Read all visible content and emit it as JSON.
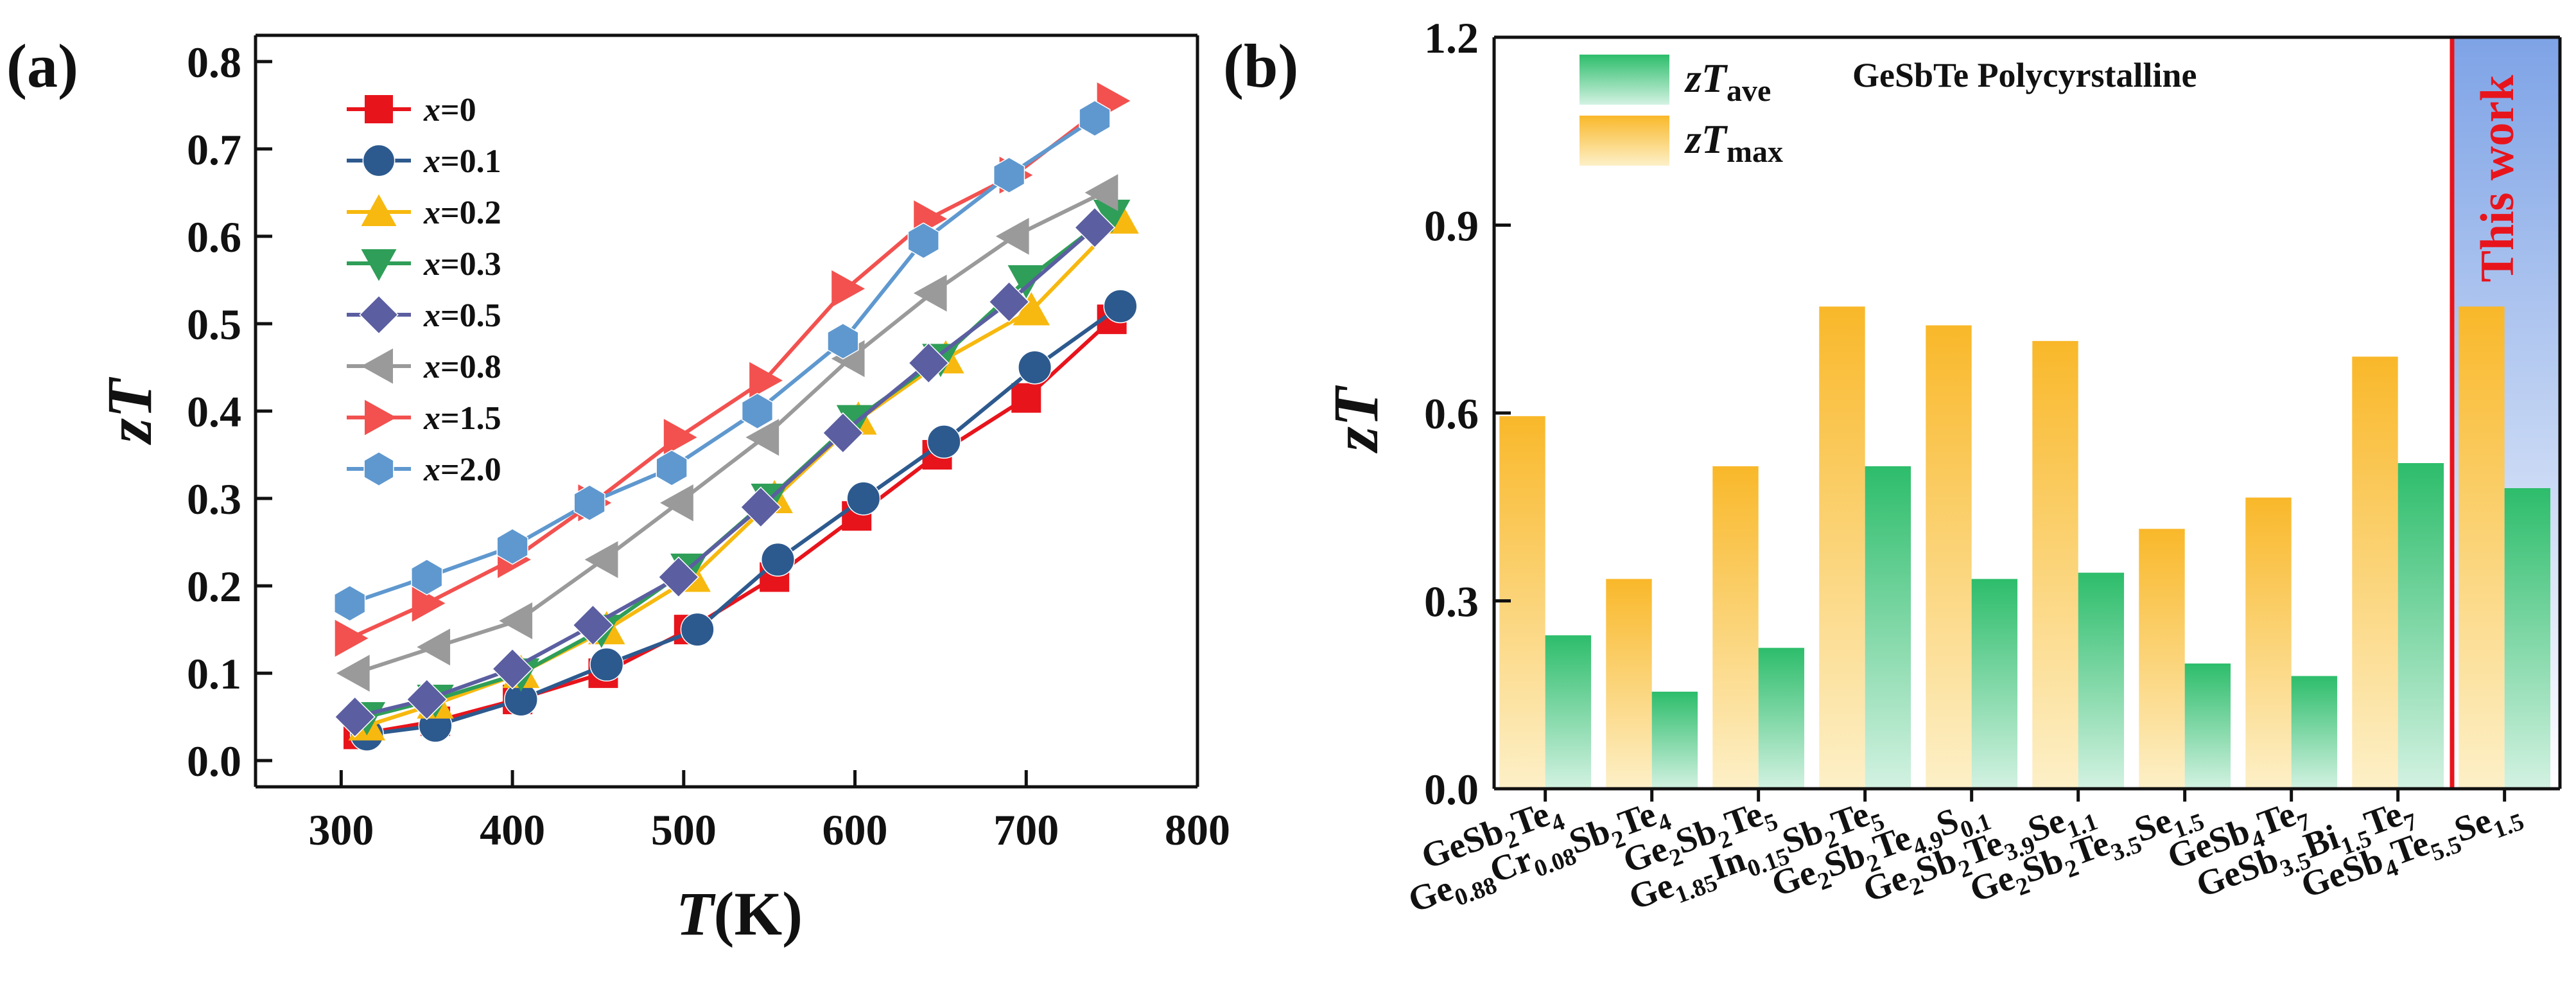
{
  "charts": [
    {
      "panel_label": "(a)",
      "chart_data": {
        "type": "line",
        "title": "",
        "xlabel": "T(K)",
        "ylabel": "zT",
        "xlim": [
          250,
          800
        ],
        "ylim": [
          -0.03,
          0.83
        ],
        "xticks": [
          300,
          400,
          500,
          600,
          700,
          800
        ],
        "yticks": [
          0.0,
          0.1,
          0.2,
          0.3,
          0.4,
          0.5,
          0.6,
          0.7,
          0.8
        ],
        "legend_position": "top-left",
        "series": [
          {
            "name": "x=0",
            "color": "#e8141c",
            "marker": "square",
            "x": [
              310,
              355,
              403,
              453,
              503,
              553,
              601,
              648,
              700,
              750
            ],
            "y": [
              0.03,
              0.045,
              0.07,
              0.1,
              0.15,
              0.21,
              0.28,
              0.35,
              0.415,
              0.505
            ]
          },
          {
            "name": "x=0.1",
            "color": "#2d5a8e",
            "marker": "circle",
            "x": [
              315,
              355,
              405,
              455,
              508,
              555,
              605,
              652,
              705,
              755
            ],
            "y": [
              0.03,
              0.04,
              0.07,
              0.11,
              0.15,
              0.23,
              0.3,
              0.365,
              0.45,
              0.52
            ]
          },
          {
            "name": "x=0.2",
            "color": "#f7b90f",
            "marker": "triangle-up",
            "x": [
              315,
              355,
              405,
              455,
              505,
              553,
              602,
              653,
              703,
              755
            ],
            "y": [
              0.04,
              0.065,
              0.1,
              0.15,
              0.21,
              0.3,
              0.39,
              0.46,
              0.515,
              0.62
            ]
          },
          {
            "name": "x=0.3",
            "color": "#2f9e58",
            "marker": "triangle-down",
            "x": [
              315,
              355,
              405,
              452,
              503,
              550,
              600,
              650,
              700,
              750
            ],
            "y": [
              0.05,
              0.07,
              0.1,
              0.15,
              0.22,
              0.3,
              0.39,
              0.46,
              0.55,
              0.625
            ]
          },
          {
            "name": "x=0.5",
            "color": "#5b5ea0",
            "marker": "diamond",
            "x": [
              308,
              350,
              400,
              447,
              497,
              545,
              593,
              643,
              690,
              740
            ],
            "y": [
              0.05,
              0.07,
              0.105,
              0.155,
              0.21,
              0.29,
              0.375,
              0.455,
              0.525,
              0.61
            ]
          },
          {
            "name": "x=0.8",
            "color": "#9a9a9a",
            "marker": "triangle-left",
            "x": [
              308,
              355,
              403,
              453,
              497,
              547,
              597,
              645,
              693,
              745
            ],
            "y": [
              0.1,
              0.13,
              0.16,
              0.23,
              0.295,
              0.37,
              0.46,
              0.535,
              0.6,
              0.65
            ]
          },
          {
            "name": "x=1.5",
            "color": "#f2514f",
            "marker": "triangle-right",
            "x": [
              305,
              350,
              400,
              447,
              497,
              547,
              595,
              643,
              693,
              750
            ],
            "y": [
              0.14,
              0.18,
              0.23,
              0.295,
              0.37,
              0.435,
              0.54,
              0.62,
              0.67,
              0.755
            ]
          },
          {
            "name": "x=2.0",
            "color": "#5f98cf",
            "marker": "hexagon",
            "x": [
              305,
              350,
              400,
              445,
              493,
              543,
              593,
              640,
              690,
              740
            ],
            "y": [
              0.18,
              0.21,
              0.245,
              0.295,
              0.335,
              0.4,
              0.48,
              0.595,
              0.67,
              0.735
            ]
          }
        ]
      }
    },
    {
      "panel_label": "(b)",
      "chart_data": {
        "type": "bar",
        "title": "GeSbTe Polycyrstalline",
        "xlabel": "",
        "ylabel": "zT",
        "ylim": [
          0,
          1.2
        ],
        "yticks": [
          "0.0",
          "0.3",
          "0.6",
          "0.9",
          "1.2"
        ],
        "legend_position": "top-left",
        "annotation": "This work",
        "annotation_color": "#e8141c",
        "categories": [
          [
            {
              "t": "GeSb"
            },
            {
              "t": "2",
              "sub": true
            },
            {
              "t": "Te"
            },
            {
              "t": "4",
              "sub": true
            }
          ],
          [
            {
              "t": "Ge"
            },
            {
              "t": "0.88",
              "sub": true
            },
            {
              "t": "Cr"
            },
            {
              "t": "0.08",
              "sub": true
            },
            {
              "t": "Sb"
            },
            {
              "t": "2",
              "sub": true
            },
            {
              "t": "Te"
            },
            {
              "t": "4",
              "sub": true
            }
          ],
          [
            {
              "t": "Ge"
            },
            {
              "t": "2",
              "sub": true
            },
            {
              "t": "Sb"
            },
            {
              "t": "2",
              "sub": true
            },
            {
              "t": "Te"
            },
            {
              "t": "5",
              "sub": true
            }
          ],
          [
            {
              "t": "Ge"
            },
            {
              "t": "1.85",
              "sub": true
            },
            {
              "t": "In"
            },
            {
              "t": "0.15",
              "sub": true
            },
            {
              "t": "Sb"
            },
            {
              "t": "2",
              "sub": true
            },
            {
              "t": "Te"
            },
            {
              "t": "5",
              "sub": true
            }
          ],
          [
            {
              "t": "Ge"
            },
            {
              "t": "2",
              "sub": true
            },
            {
              "t": "Sb"
            },
            {
              "t": "2",
              "sub": true
            },
            {
              "t": "Te"
            },
            {
              "t": "4.9",
              "sub": true
            },
            {
              "t": "S"
            },
            {
              "t": "0.1",
              "sub": true
            }
          ],
          [
            {
              "t": "Ge"
            },
            {
              "t": "2",
              "sub": true
            },
            {
              "t": "Sb"
            },
            {
              "t": "2",
              "sub": true
            },
            {
              "t": "Te"
            },
            {
              "t": "3.9",
              "sub": true
            },
            {
              "t": "Se"
            },
            {
              "t": "1.1",
              "sub": true
            }
          ],
          [
            {
              "t": "Ge"
            },
            {
              "t": "2",
              "sub": true
            },
            {
              "t": "Sb"
            },
            {
              "t": "2",
              "sub": true
            },
            {
              "t": "Te"
            },
            {
              "t": "3.5",
              "sub": true
            },
            {
              "t": "Se"
            },
            {
              "t": "1.5",
              "sub": true
            }
          ],
          [
            {
              "t": "GeSb"
            },
            {
              "t": "4",
              "sub": true
            },
            {
              "t": "Te"
            },
            {
              "t": "7",
              "sub": true
            }
          ],
          [
            {
              "t": "GeSb"
            },
            {
              "t": "3.5",
              "sub": true
            },
            {
              "t": "Bi"
            },
            {
              "t": "1.5",
              "sub": true
            },
            {
              "t": "Te"
            },
            {
              "t": "7",
              "sub": true
            }
          ],
          [
            {
              "t": "GeSb"
            },
            {
              "t": "4",
              "sub": true
            },
            {
              "t": "Te"
            },
            {
              "t": "5.5",
              "sub": true
            },
            {
              "t": "Se"
            },
            {
              "t": "1.5",
              "sub": true
            }
          ]
        ],
        "series": [
          {
            "name": "zTmax",
            "label_main": "zT",
            "label_sub": "max",
            "colors": [
              "#f9b82a",
              "#fdf0c8"
            ],
            "values": [
              0.595,
              0.335,
              0.515,
              0.77,
              0.74,
              0.715,
              0.415,
              0.465,
              0.69,
              0.77
            ]
          },
          {
            "name": "zTave",
            "label_main": "zT",
            "label_sub": "ave",
            "colors": [
              "#2dbd6b",
              "#d3f2e2"
            ],
            "values": [
              0.245,
              0.155,
              0.225,
              0.515,
              0.335,
              0.345,
              0.2,
              0.18,
              0.52,
              0.48
            ]
          }
        ]
      }
    }
  ]
}
